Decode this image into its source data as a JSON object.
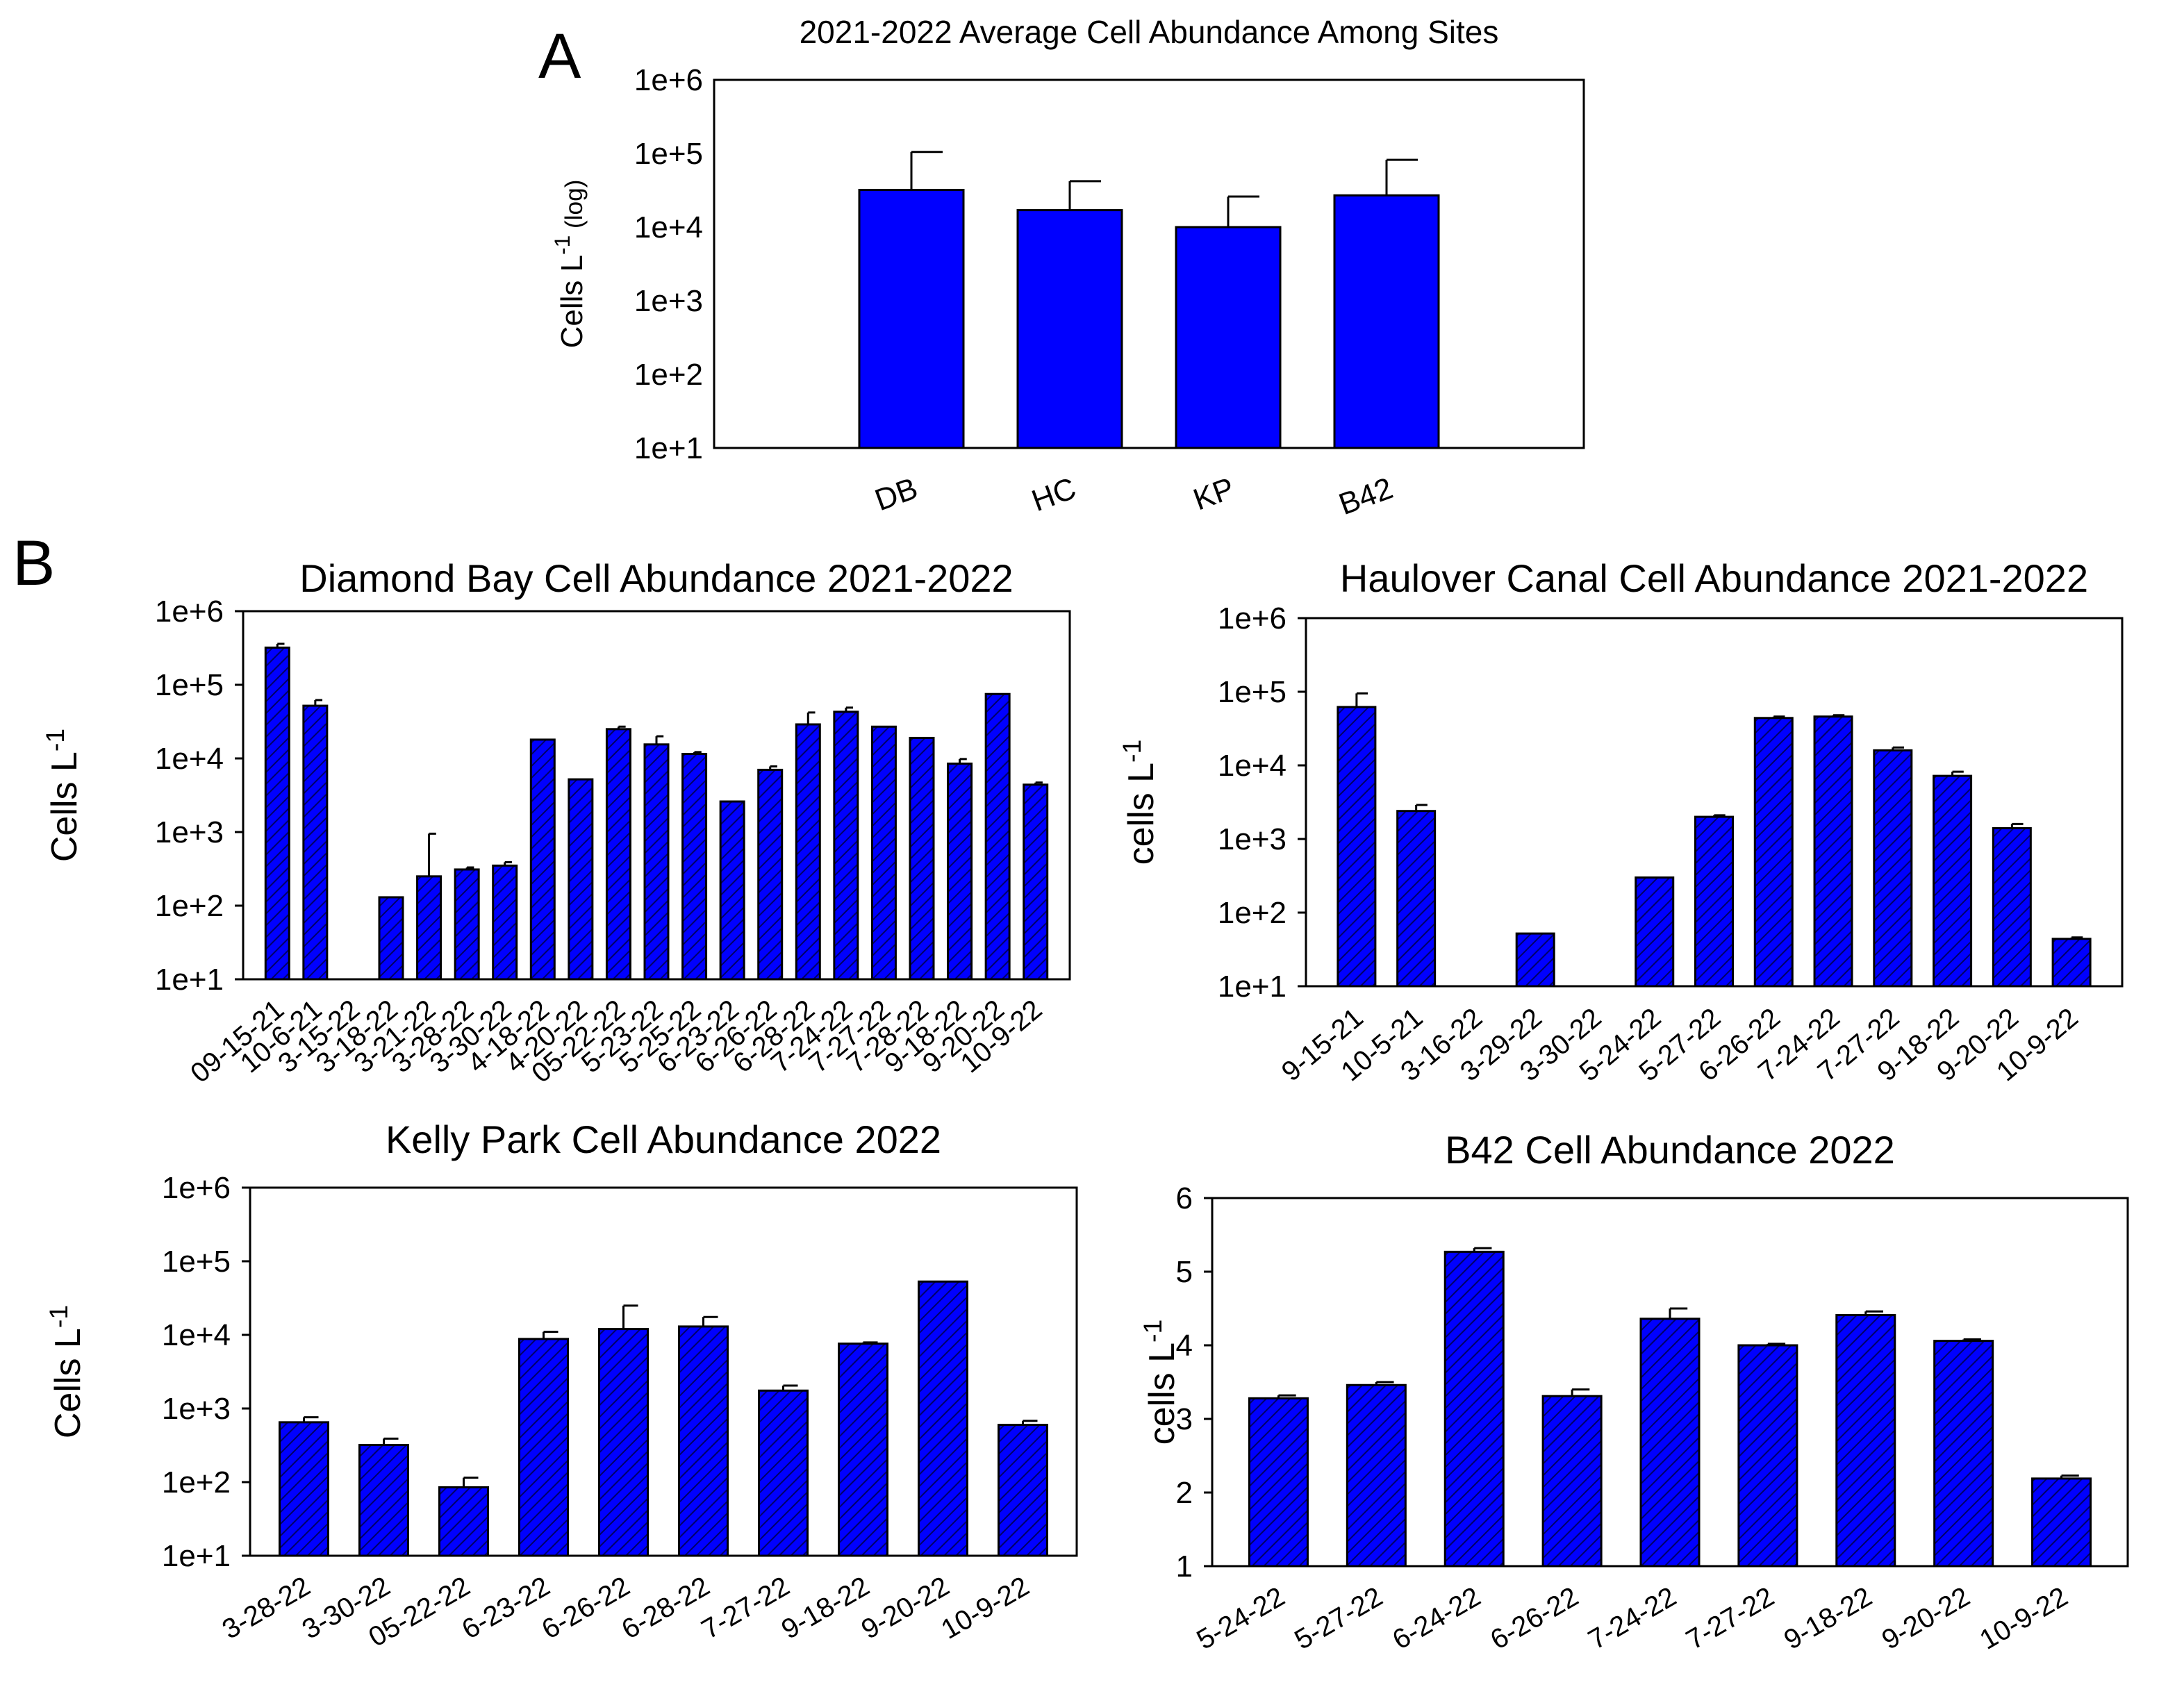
{
  "panel_labels": {
    "a": "A",
    "b": "B"
  },
  "colors": {
    "bar": "#0000ff",
    "hatch": "#000066",
    "frame": "#000000"
  },
  "chart_data": [
    {
      "id": "avg",
      "type": "bar",
      "scale": "log",
      "hatched": false,
      "title": "2021-2022 Average Cell Abundance Among Sites",
      "ylabel_main": "Cells L",
      "ylabel_sup": "-1",
      "ylabel_suffix": " (log)",
      "xlabel": "",
      "ylim": [
        10,
        1000000
      ],
      "yticks": [
        {
          "v": 10,
          "label": "1e+1"
        },
        {
          "v": 100,
          "label": "1e+2"
        },
        {
          "v": 1000,
          "label": "1e+3"
        },
        {
          "v": 10000,
          "label": "1e+4"
        },
        {
          "v": 100000,
          "label": "1e+5"
        },
        {
          "v": 1000000,
          "label": "1e+6"
        }
      ],
      "categories": [
        "DB",
        "HC",
        "KP",
        "B42"
      ],
      "values": [
        32000,
        17000,
        10000,
        27000
      ],
      "errors": [
        105000,
        42000,
        26000,
        82000
      ]
    },
    {
      "id": "db",
      "type": "bar",
      "scale": "log",
      "hatched": true,
      "title": "Diamond Bay Cell Abundance 2021-2022",
      "ylabel_main": "Cells L",
      "ylabel_sup": "-1",
      "ylabel_suffix": "",
      "xlabel": "",
      "ylim": [
        10,
        1000000
      ],
      "yticks": [
        {
          "v": 10,
          "label": "1e+1"
        },
        {
          "v": 100,
          "label": "1e+2"
        },
        {
          "v": 1000,
          "label": "1e+3"
        },
        {
          "v": 10000,
          "label": "1e+4"
        },
        {
          "v": 100000,
          "label": "1e+5"
        },
        {
          "v": 1000000,
          "label": "1e+6"
        }
      ],
      "categories": [
        "09-15-21",
        "10-6-21",
        "3-15-22",
        "3-18-22",
        "3-21-22",
        "3-28-22",
        "3-30-22",
        "4-18-22",
        "4-20-22",
        "05-22-22",
        "5-23-22",
        "5-25-22",
        "6-23-22",
        "6-26-22",
        "6-28-22",
        "7-24-22",
        "7-27-22",
        "7-28-22",
        "9-18-22",
        "9-20-22",
        "10-9-22"
      ],
      "values": [
        320000,
        52000,
        null,
        130,
        250,
        310,
        350,
        18000,
        5200,
        25000,
        15500,
        11500,
        2600,
        7000,
        29000,
        43000,
        27000,
        19000,
        8500,
        75000,
        4400
      ],
      "errors": [
        360000,
        62000,
        null,
        null,
        950,
        330,
        390,
        null,
        null,
        27000,
        20000,
        12200,
        null,
        7800,
        42000,
        49000,
        null,
        null,
        9800,
        null,
        4700
      ]
    },
    {
      "id": "hc",
      "type": "bar",
      "scale": "log",
      "hatched": true,
      "title": "Haulover Canal Cell Abundance 2021-2022",
      "ylabel_main": "cells L",
      "ylabel_sup": "-1",
      "ylabel_suffix": "",
      "xlabel": "",
      "ylim": [
        10,
        1000000
      ],
      "yticks": [
        {
          "v": 10,
          "label": "1e+1"
        },
        {
          "v": 100,
          "label": "1e+2"
        },
        {
          "v": 1000,
          "label": "1e+3"
        },
        {
          "v": 10000,
          "label": "1e+4"
        },
        {
          "v": 100000,
          "label": "1e+5"
        },
        {
          "v": 1000000,
          "label": "1e+6"
        }
      ],
      "categories": [
        "9-15-21",
        "10-5-21",
        "3-16-22",
        "3-29-22",
        "3-30-22",
        "5-24-22",
        "5-27-22",
        "6-26-22",
        "7-24-22",
        "7-27-22",
        "9-18-22",
        "9-20-22",
        "10-9-22"
      ],
      "values": [
        62000,
        2400,
        null,
        52,
        null,
        300,
        2000,
        44000,
        46000,
        16000,
        7200,
        1400,
        44
      ],
      "errors": [
        95000,
        2900,
        null,
        null,
        null,
        null,
        2100,
        46000,
        48000,
        17500,
        8200,
        1600,
        46
      ]
    },
    {
      "id": "kp",
      "type": "bar",
      "scale": "log",
      "hatched": true,
      "title": "Kelly Park Cell Abundance 2022",
      "ylabel_main": "Cells L",
      "ylabel_sup": "-1",
      "ylabel_suffix": "",
      "xlabel": "",
      "ylim": [
        10,
        1000000
      ],
      "yticks": [
        {
          "v": 10,
          "label": "1e+1"
        },
        {
          "v": 100,
          "label": "1e+2"
        },
        {
          "v": 1000,
          "label": "1e+3"
        },
        {
          "v": 10000,
          "label": "1e+4"
        },
        {
          "v": 100000,
          "label": "1e+5"
        },
        {
          "v": 1000000,
          "label": "1e+6"
        }
      ],
      "categories": [
        "3-28-22",
        "3-30-22",
        "05-22-22",
        "6-23-22",
        "6-26-22",
        "6-28-22",
        "7-27-22",
        "9-18-22",
        "9-20-22",
        "10-9-22"
      ],
      "values": [
        650,
        320,
        85,
        8800,
        12000,
        13000,
        1750,
        7600,
        53000,
        600
      ],
      "errors": [
        760,
        390,
        115,
        11000,
        25000,
        17500,
        2050,
        7900,
        null,
        680
      ]
    },
    {
      "id": "b42",
      "type": "bar",
      "scale": "linear",
      "hatched": true,
      "title": "B42 Cell Abundance 2022",
      "ylabel_main": "cells L",
      "ylabel_sup": "-1",
      "ylabel_suffix": "",
      "xlabel": "",
      "ylim": [
        1,
        6
      ],
      "yticks": [
        {
          "v": 1,
          "label": "1"
        },
        {
          "v": 2,
          "label": "2"
        },
        {
          "v": 3,
          "label": "3"
        },
        {
          "v": 4,
          "label": "4"
        },
        {
          "v": 5,
          "label": "5"
        },
        {
          "v": 6,
          "label": "6"
        }
      ],
      "categories": [
        "5-24-22",
        "5-27-22",
        "6-24-22",
        "6-26-22",
        "7-24-22",
        "7-27-22",
        "9-18-22",
        "9-20-22",
        "10-9-22"
      ],
      "values": [
        3.28,
        3.46,
        5.27,
        3.31,
        4.36,
        4.0,
        4.41,
        4.06,
        2.19
      ],
      "errors": [
        3.32,
        3.5,
        5.32,
        3.4,
        4.5,
        4.02,
        4.46,
        4.08,
        2.23
      ]
    }
  ]
}
